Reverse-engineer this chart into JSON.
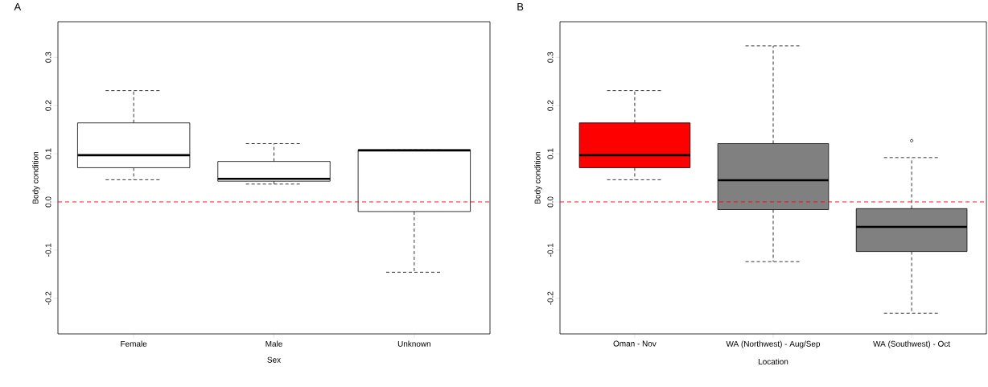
{
  "chart_data": [
    {
      "type": "box",
      "title": "A",
      "xlabel": "Sex",
      "ylabel": "Body condition",
      "categories": [
        "Female",
        "Male",
        "Unknown"
      ],
      "colors": [
        "#ffffff",
        "#ffffff",
        "#ffffff"
      ],
      "boxes": [
        {
          "low": 0.046,
          "q1": 0.071,
          "median": 0.097,
          "q3": 0.164,
          "high": 0.231
        },
        {
          "low": 0.037,
          "q1": 0.043,
          "median": 0.048,
          "q3": 0.084,
          "high": 0.121
        },
        {
          "low": -0.146,
          "q1": -0.02,
          "median": 0.107,
          "q3": 0.108,
          "high": 0.108
        }
      ],
      "ylim": [
        -0.274,
        0.374
      ],
      "yticks": [
        -0.2,
        -0.1,
        {
          "value": 0,
          "label": "0.0"
        },
        0.1,
        0.2,
        0.3
      ],
      "ref_lines": [
        {
          "axis": "y",
          "value": 0,
          "color": "#ff0000",
          "line_style": "dashed"
        }
      ],
      "grid": false
    },
    {
      "type": "box",
      "title": "B",
      "xlabel": "Location",
      "ylabel": "Body condition",
      "categories": [
        "Oman - Nov",
        "WA (Northwest) - Aug/Sep",
        "WA (Southwest) - Oct"
      ],
      "colors": [
        "#ff0000",
        "#808080",
        "#808080"
      ],
      "boxes": [
        {
          "low": 0.046,
          "q1": 0.071,
          "median": 0.097,
          "q3": 0.164,
          "high": 0.231
        },
        {
          "low": -0.124,
          "q1": -0.016,
          "median": 0.045,
          "q3": 0.121,
          "high": 0.324
        },
        {
          "low": -0.231,
          "q1": -0.103,
          "median": -0.052,
          "q3": -0.014,
          "high": 0.092,
          "outliers": [
            0.127
          ]
        }
      ],
      "ylim": [
        -0.274,
        0.374
      ],
      "yticks": [
        -0.2,
        -0.1,
        {
          "value": 0,
          "label": "0.0"
        },
        0.1,
        0.2,
        0.3
      ],
      "ref_lines": [
        {
          "axis": "y",
          "value": 0,
          "color": "#ff0000",
          "line_style": "dashed"
        }
      ],
      "grid": false
    }
  ]
}
